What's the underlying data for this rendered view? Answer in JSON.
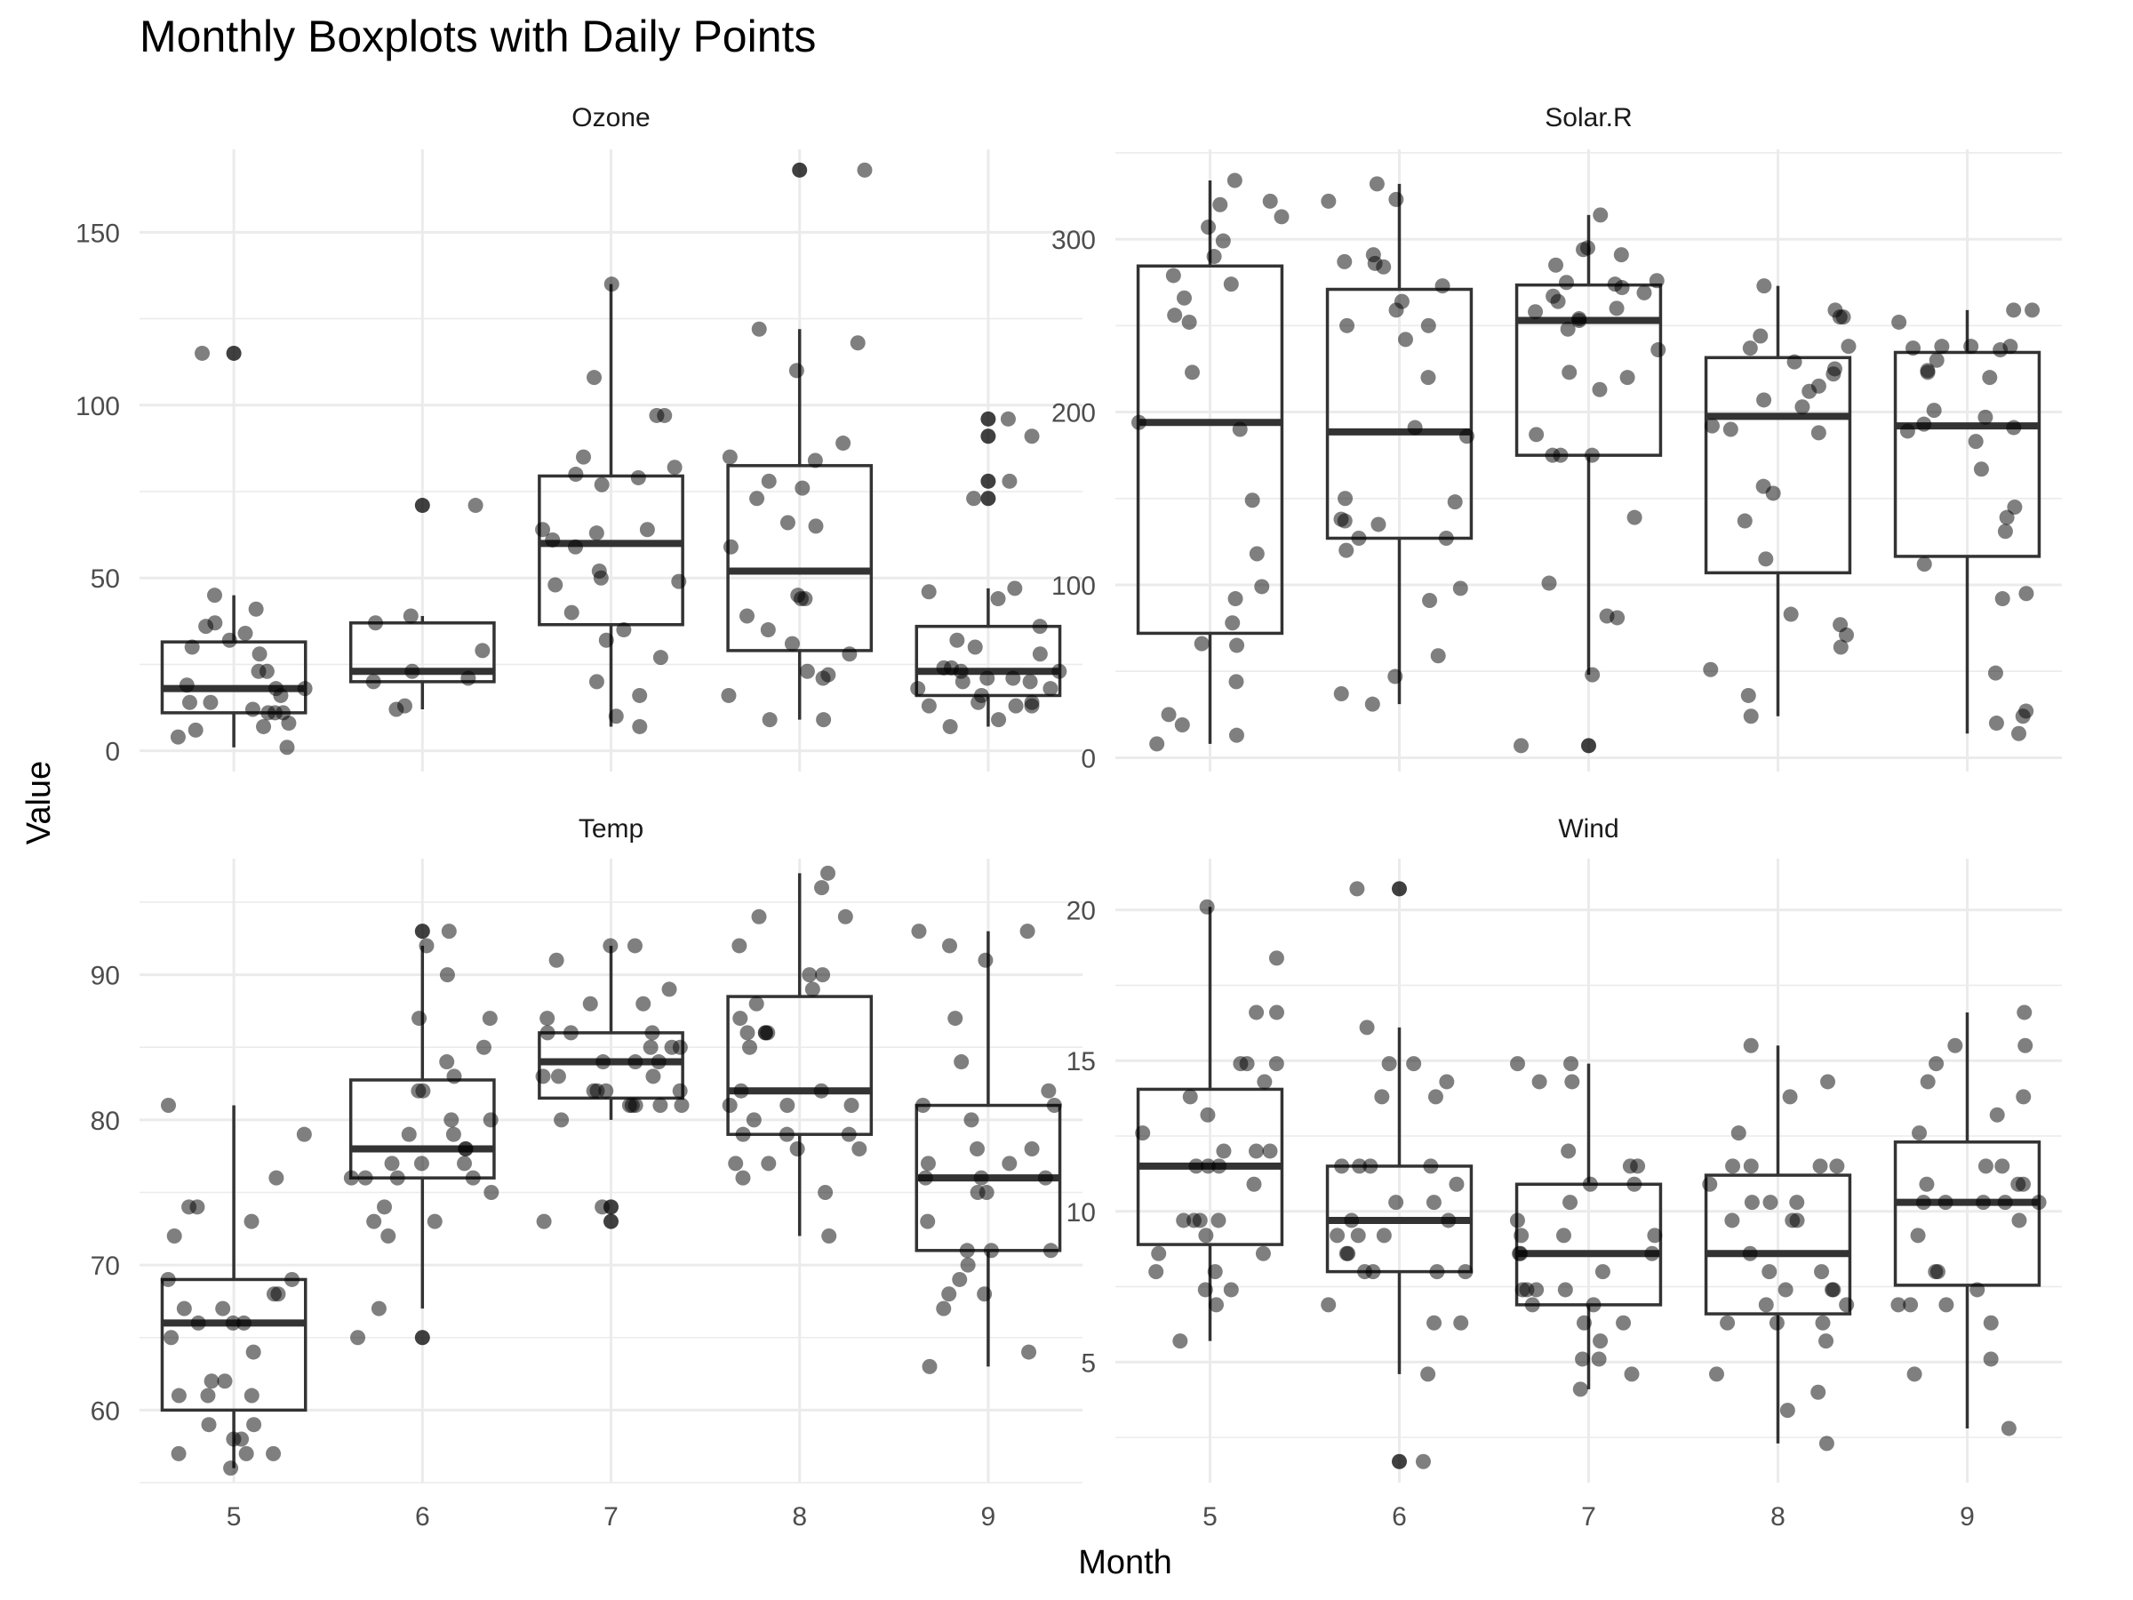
{
  "chart_data": {
    "type": "boxplot",
    "title": "Monthly Boxplots with Daily Points",
    "xlabel": "Month",
    "ylabel": "Value",
    "categories": [
      "5",
      "6",
      "7",
      "8",
      "9"
    ],
    "grid": true,
    "point_color": "#000000",
    "box_color": "#333333",
    "grid_color": "#ebebeb",
    "panels": [
      {
        "name": "Ozone",
        "ylim": [
          -6,
          174
        ],
        "yticks": [
          0,
          50,
          100,
          150
        ],
        "boxes": [
          {
            "month": "5",
            "q1": 11,
            "median": 18,
            "q3": 31.5,
            "whisker_low": 1,
            "whisker_high": 45
          },
          {
            "month": "6",
            "q1": 20,
            "median": 23,
            "q3": 37,
            "whisker_low": 12,
            "whisker_high": 39
          },
          {
            "month": "7",
            "q1": 36.5,
            "median": 60,
            "q3": 79.5,
            "whisker_low": 7,
            "whisker_high": 135
          },
          {
            "month": "8",
            "q1": 29,
            "median": 52,
            "q3": 82.5,
            "whisker_low": 9,
            "whisker_high": 122
          },
          {
            "month": "9",
            "q1": 16,
            "median": 23,
            "q3": 36,
            "whisker_low": 7,
            "whisker_high": 47
          }
        ],
        "outliers": [
          {
            "month": "5",
            "value": 115
          },
          {
            "month": "6",
            "value": 71
          },
          {
            "month": "8",
            "value": 168
          },
          {
            "month": "9",
            "value": 96
          },
          {
            "month": "9",
            "value": 91
          },
          {
            "month": "9",
            "value": 78
          },
          {
            "month": "9",
            "value": 73
          }
        ],
        "points": [
          {
            "month": "5",
            "values": [
              41,
              36,
              12,
              18,
              28,
              23,
              19,
              8,
              7,
              16,
              11,
              14,
              18,
              14,
              34,
              6,
              30,
              11,
              1,
              11,
              4,
              32,
              23,
              45,
              115,
              37
            ]
          },
          {
            "month": "6",
            "values": [
              29,
              71,
              39,
              23,
              21,
              37,
              20,
              12,
              13
            ]
          },
          {
            "month": "7",
            "values": [
              135,
              49,
              32,
              64,
              40,
              77,
              97,
              97,
              85,
              10,
              27,
              7,
              48,
              35,
              61,
              79,
              63,
              16,
              80,
              108,
              20,
              52,
              82,
              50,
              64,
              59
            ]
          },
          {
            "month": "8",
            "values": [
              39,
              9,
              16,
              78,
              35,
              66,
              122,
              89,
              110,
              44,
              28,
              65,
              22,
              59,
              23,
              31,
              44,
              21,
              9,
              45,
              168,
              73,
              76,
              118,
              84,
              85
            ]
          },
          {
            "month": "9",
            "values": [
              96,
              78,
              73,
              91,
              47,
              32,
              20,
              23,
              21,
              24,
              44,
              21,
              28,
              9,
              13,
              46,
              18,
              13,
              24,
              16,
              13,
              23,
              36,
              7,
              14,
              30,
              14,
              18,
              20
            ]
          }
        ]
      },
      {
        "name": "Solar.R",
        "ylim": [
          -8,
          352
        ],
        "yticks": [
          0,
          100,
          200,
          300
        ],
        "boxes": [
          {
            "month": "5",
            "q1": 72,
            "median": 194,
            "q3": 284.5,
            "whisker_low": 8,
            "whisker_high": 334
          },
          {
            "month": "6",
            "q1": 127,
            "median": 188.5,
            "q3": 271,
            "whisker_low": 31,
            "whisker_high": 332
          },
          {
            "month": "7",
            "q1": 175,
            "median": 253,
            "q3": 273.5,
            "whisker_low": 48,
            "whisker_high": 314
          },
          {
            "month": "8",
            "q1": 107,
            "median": 197.5,
            "q3": 231.5,
            "whisker_low": 24,
            "whisker_high": 273
          },
          {
            "month": "9",
            "q1": 116.5,
            "median": 192,
            "q3": 234.5,
            "whisker_low": 14,
            "whisker_high": 259
          }
        ],
        "outliers": [
          {
            "month": "7",
            "value": 7
          }
        ],
        "points": [
          {
            "month": "5",
            "values": [
              190,
              118,
              149,
              313,
              299,
              99,
              19,
              194,
              256,
              290,
              274,
              65,
              334,
              307,
              78,
              322,
              44,
              8,
              320,
              25,
              92,
              66,
              266,
              13,
              252,
              223,
              279
            ]
          },
          {
            "month": "6",
            "values": [
              286,
              287,
              242,
              186,
              220,
              264,
              127,
              273,
              291,
              323,
              259,
              250,
              148,
              332,
              322,
              191,
              284,
              37,
              120,
              137,
              150,
              59,
              91,
              250,
              135,
              127,
              47,
              98,
              31,
              138
            ]
          },
          {
            "month": "7",
            "values": [
              269,
              248,
              236,
              101,
              175,
              314,
              276,
              267,
              272,
              175,
              139,
              264,
              175,
              291,
              48,
              260,
              274,
              285,
              187,
              220,
              7,
              258,
              295,
              294,
              223,
              81,
              82,
              213,
              275,
              253,
              254
            ]
          },
          {
            "month": "8",
            "values": [
              83,
              24,
              77,
              255,
              229,
              207,
              222,
              137,
              192,
              273,
              157,
              64,
              71,
              51,
              115,
              244,
              190,
              259,
              36,
              255,
              212,
              238,
              215,
              153,
              203,
              225,
              237,
              188
            ]
          },
          {
            "month": "9",
            "values": [
              167,
              197,
              183,
              189,
              95,
              92,
              252,
              220,
              230,
              259,
              236,
              259,
              238,
              24,
              112,
              237,
              224,
              27,
              238,
              201,
              238,
              14,
              139,
              49,
              20,
              193,
              145,
              191,
              131,
              223
            ]
          }
        ]
      },
      {
        "name": "Temp",
        "ylim": [
          55,
          98
        ],
        "yticks": [
          60,
          70,
          80,
          90
        ],
        "boxes": [
          {
            "month": "5",
            "q1": 60,
            "median": 66,
            "q3": 69,
            "whisker_low": 56,
            "whisker_high": 81
          },
          {
            "month": "6",
            "q1": 76,
            "median": 78,
            "q3": 82.75,
            "whisker_low": 67,
            "whisker_high": 92
          },
          {
            "month": "7",
            "q1": 81.5,
            "median": 84,
            "q3": 86,
            "whisker_low": 80,
            "whisker_high": 92
          },
          {
            "month": "8",
            "q1": 79,
            "median": 82,
            "q3": 88.5,
            "whisker_low": 72,
            "whisker_high": 97
          },
          {
            "month": "9",
            "q1": 71,
            "median": 76,
            "q3": 81,
            "whisker_low": 63,
            "whisker_high": 93
          }
        ],
        "outliers": [
          {
            "month": "6",
            "value": 93
          },
          {
            "month": "6",
            "value": 65
          },
          {
            "month": "7",
            "value": 74
          },
          {
            "month": "7",
            "value": 73
          }
        ],
        "points": [
          {
            "month": "5",
            "values": [
              67,
              72,
              74,
              62,
              56,
              66,
              65,
              59,
              61,
              69,
              74,
              69,
              66,
              68,
              58,
              64,
              66,
              57,
              68,
              62,
              59,
              73,
              61,
              61,
              57,
              58,
              57,
              67,
              81,
              79,
              76
            ]
          },
          {
            "month": "6",
            "values": [
              78,
              74,
              67,
              84,
              85,
              79,
              82,
              87,
              90,
              87,
              93,
              92,
              82,
              80,
              79,
              77,
              72,
              65,
              73,
              76,
              77,
              76,
              76,
              76,
              75,
              78,
              73,
              80,
              77,
              83
            ]
          },
          {
            "month": "7",
            "values": [
              84,
              85,
              81,
              84,
              83,
              83,
              88,
              92,
              92,
              89,
              82,
              73,
              81,
              91,
              80,
              81,
              82,
              84,
              87,
              85,
              74,
              81,
              82,
              86,
              85,
              82,
              86,
              88,
              86,
              83,
              81
            ]
          },
          {
            "month": "8",
            "values": [
              81,
              81,
              82,
              86,
              85,
              87,
              89,
              90,
              90,
              92,
              86,
              86,
              82,
              80,
              79,
              77,
              79,
              76,
              78,
              78,
              77,
              72,
              75,
              79,
              81,
              86,
              88,
              97,
              94,
              96,
              94
            ]
          },
          {
            "month": "9",
            "values": [
              91,
              92,
              93,
              93,
              87,
              84,
              80,
              78,
              75,
              73,
              81,
              76,
              77,
              71,
              71,
              78,
              67,
              76,
              68,
              82,
              64,
              71,
              81,
              69,
              63,
              70,
              77,
              75,
              76,
              68
            ]
          }
        ]
      },
      {
        "name": "Wind",
        "ylim": [
          1,
          21.7
        ],
        "yticks": [
          5,
          10,
          15,
          20
        ],
        "boxes": [
          {
            "month": "5",
            "q1": 8.9,
            "median": 11.5,
            "q3": 14.05,
            "whisker_low": 5.7,
            "whisker_high": 20.1
          },
          {
            "month": "6",
            "q1": 8.0,
            "median": 9.7,
            "q3": 11.5,
            "whisker_low": 4.6,
            "whisker_high": 16.1
          },
          {
            "month": "7",
            "q1": 6.9,
            "median": 8.6,
            "q3": 10.9,
            "whisker_low": 4.1,
            "whisker_high": 14.9
          },
          {
            "month": "8",
            "q1": 6.6,
            "median": 8.6,
            "q3": 11.2,
            "whisker_low": 2.3,
            "whisker_high": 15.5
          },
          {
            "month": "9",
            "q1": 7.55,
            "median": 10.3,
            "q3": 12.3,
            "whisker_low": 2.8,
            "whisker_high": 16.6
          }
        ],
        "outliers": [
          {
            "month": "6",
            "value": 20.7
          },
          {
            "month": "6",
            "value": 1.7
          }
        ],
        "points": [
          {
            "month": "5",
            "values": [
              7.4,
              8.0,
              12.6,
              11.5,
              14.3,
              14.9,
              8.6,
              13.8,
              20.1,
              8.6,
              6.9,
              9.7,
              9.2,
              10.9,
              13.2,
              11.5,
              12.0,
              18.4,
              11.5,
              9.7,
              9.7,
              16.6,
              9.7,
              12.0,
              16.6,
              14.9,
              8.0,
              12.0,
              14.9,
              5.7,
              7.4
            ]
          },
          {
            "month": "6",
            "values": [
              8.6,
              9.7,
              16.1,
              9.2,
              8.6,
              14.3,
              9.7,
              6.9,
              13.8,
              11.5,
              10.9,
              9.2,
              8.0,
              13.8,
              11.5,
              14.9,
              20.7,
              9.2,
              11.5,
              10.3,
              6.3,
              1.7,
              4.6,
              6.3,
              8.0,
              8.0,
              10.3,
              11.5,
              14.9,
              8.0
            ]
          },
          {
            "month": "7",
            "values": [
              4.1,
              9.2,
              9.2,
              10.9,
              4.6,
              10.9,
              5.1,
              6.3,
              5.7,
              7.4,
              8.6,
              14.3,
              14.9,
              14.9,
              14.3,
              6.9,
              10.3,
              6.3,
              5.1,
              11.5,
              6.9,
              9.7,
              11.5,
              8.6,
              8.0,
              8.6,
              12.0,
              7.4,
              7.4,
              7.4,
              9.2
            ]
          },
          {
            "month": "8",
            "values": [
              6.9,
              13.8,
              7.4,
              6.9,
              7.4,
              4.6,
              4.0,
              10.3,
              8.0,
              8.6,
              11.5,
              11.5,
              11.5,
              9.7,
              11.5,
              10.3,
              6.3,
              7.4,
              10.9,
              10.3,
              15.5,
              14.3,
              12.6,
              9.7,
              3.4,
              8.0,
              5.7,
              9.7,
              2.3,
              6.3,
              6.3
            ]
          },
          {
            "month": "9",
            "values": [
              6.9,
              5.1,
              2.8,
              4.6,
              7.4,
              15.5,
              10.9,
              10.3,
              10.9,
              9.7,
              14.9,
              15.5,
              6.3,
              10.9,
              11.5,
              6.9,
              13.8,
              10.3,
              10.3,
              8.0,
              12.6,
              9.2,
              10.3,
              10.3,
              16.6,
              6.9,
              13.2,
              14.3,
              8.0,
              11.5
            ]
          }
        ]
      }
    ]
  }
}
